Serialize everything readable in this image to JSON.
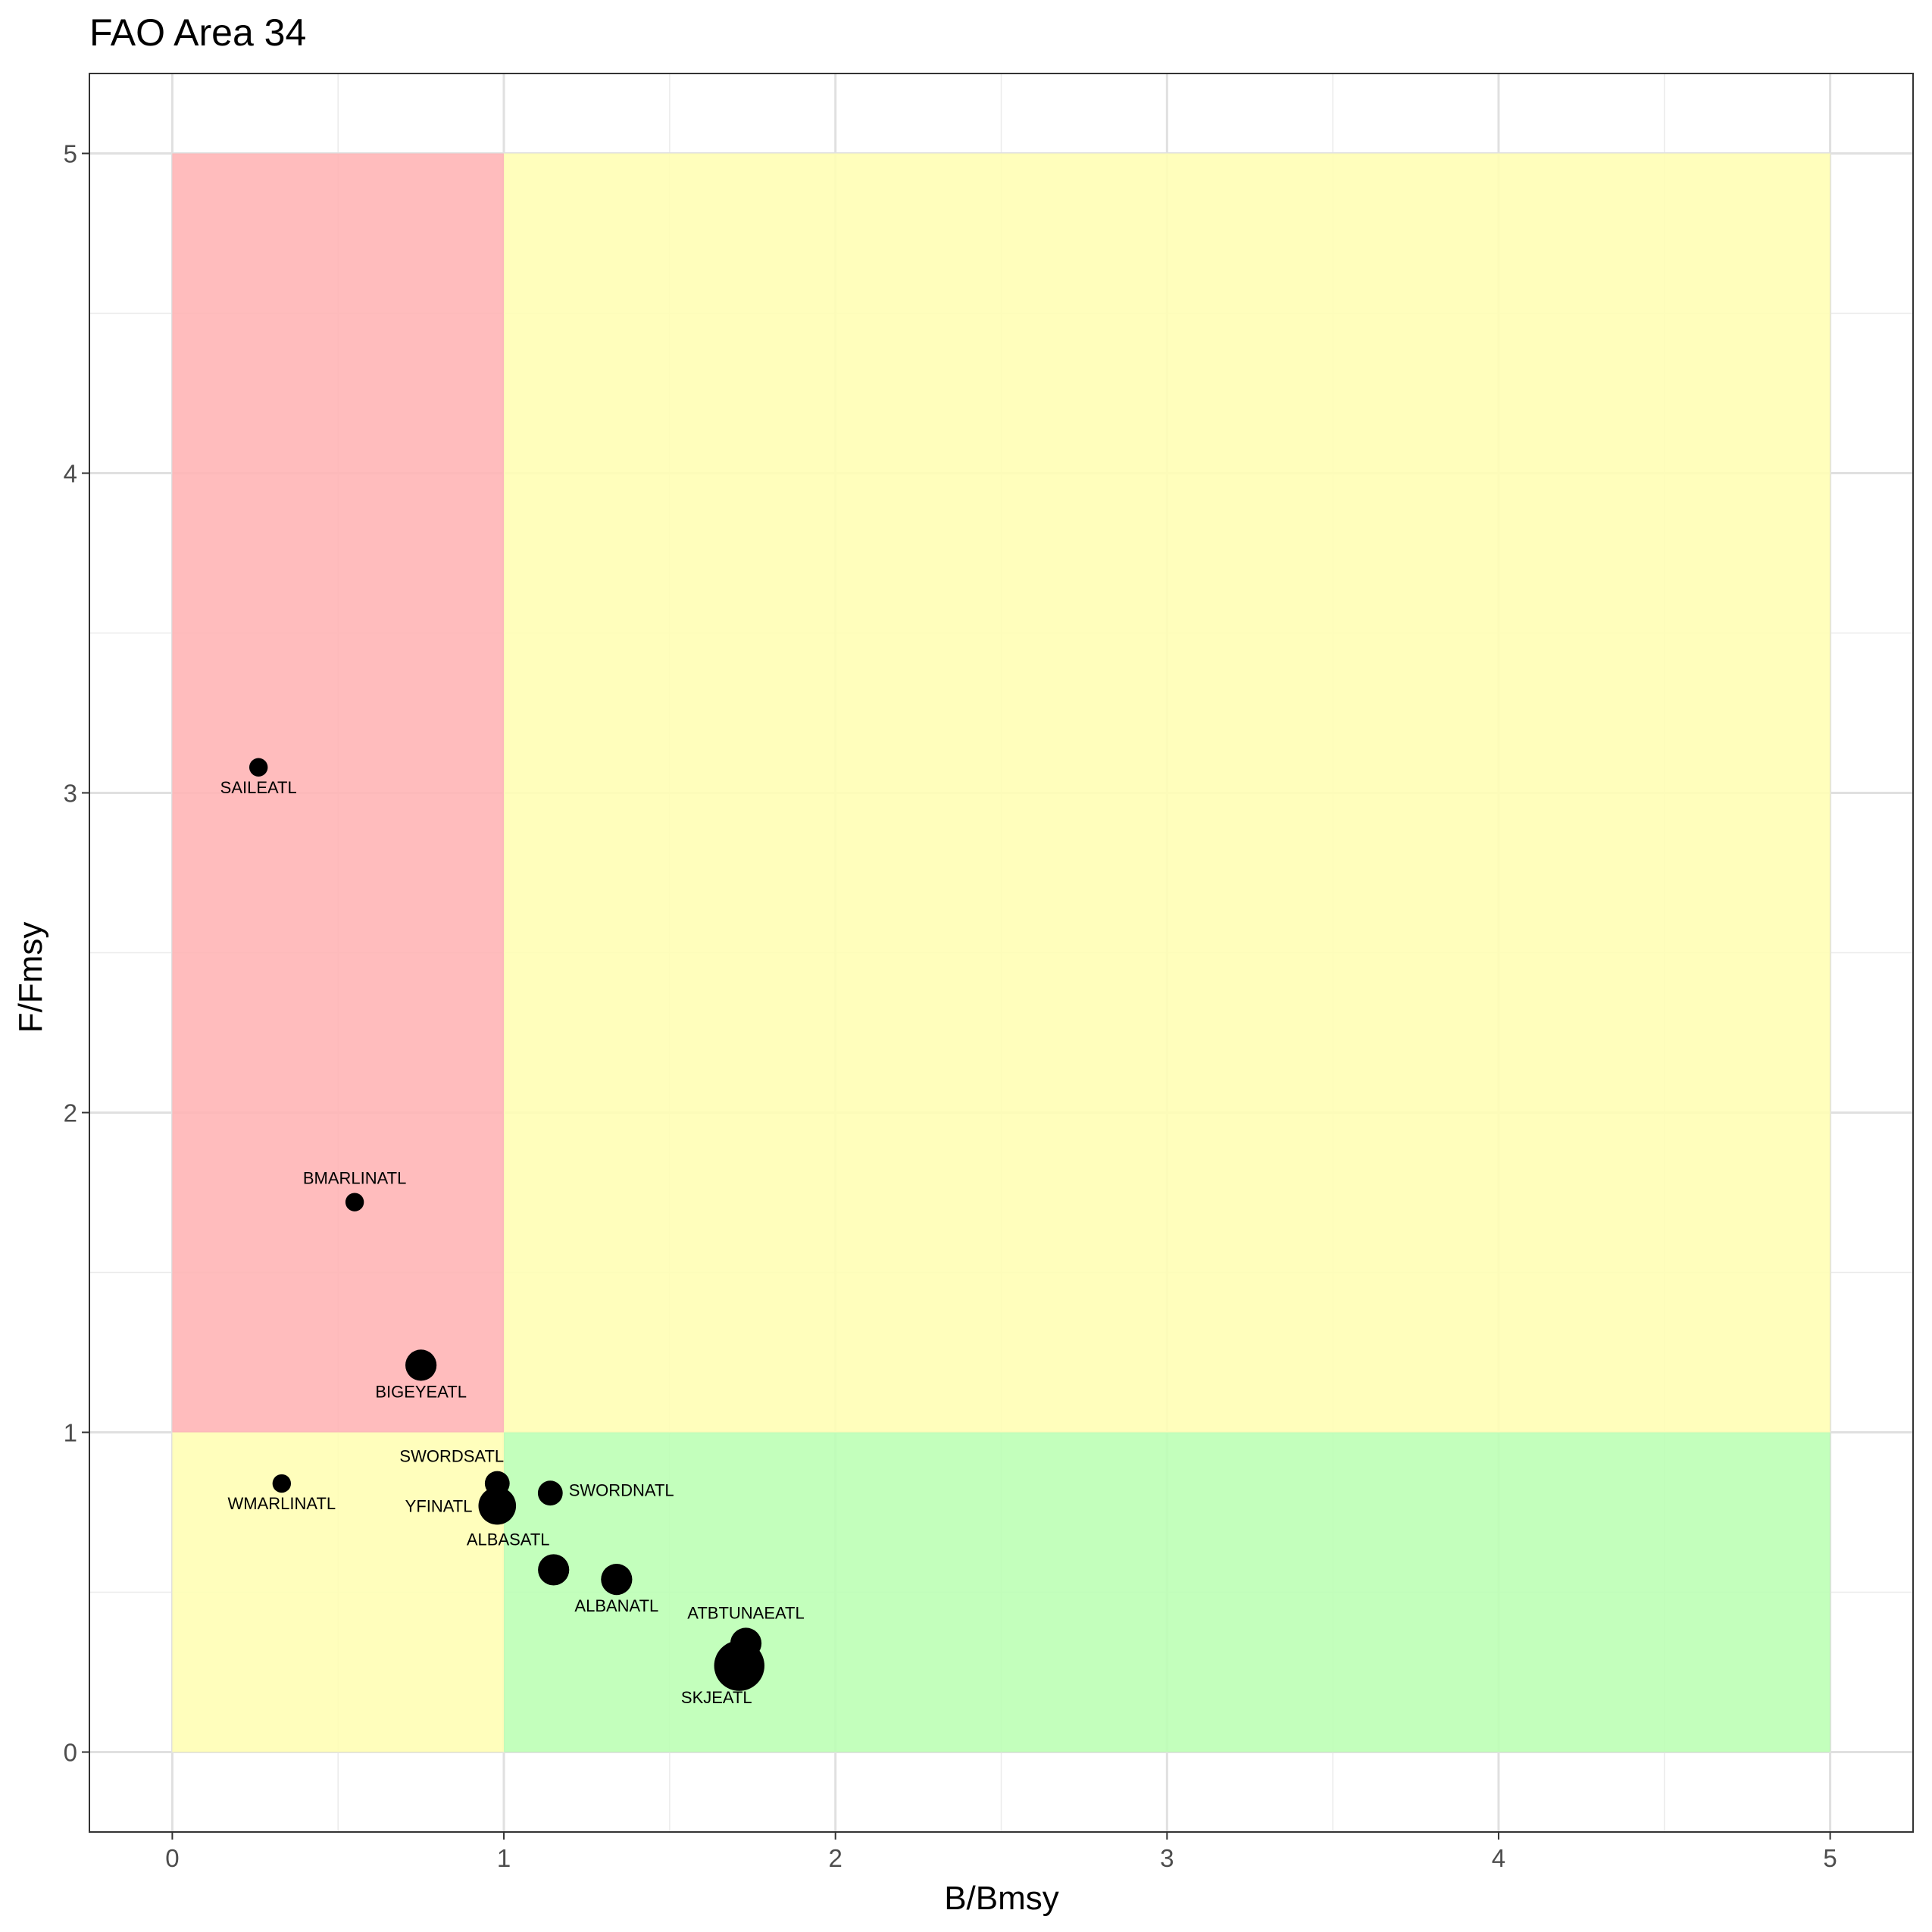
{
  "chart_data": {
    "type": "scatter",
    "title": "FAO Area 34",
    "xlabel": "B/Bmsy",
    "ylabel": "F/Fmsy",
    "xlim": [
      -0.25,
      5.25
    ],
    "ylim": [
      -0.25,
      5.25
    ],
    "x_ticks": [
      "0",
      "1",
      "2",
      "3",
      "4",
      "5"
    ],
    "y_ticks": [
      "0",
      "1",
      "2",
      "3",
      "4",
      "5"
    ],
    "grid": true,
    "legend": "none",
    "zones": [
      {
        "x": [
          0,
          1
        ],
        "y": [
          1,
          5
        ],
        "color": "#FFB3B4"
      },
      {
        "x": [
          1,
          5
        ],
        "y": [
          1,
          5
        ],
        "color": "#FFFEB3"
      },
      {
        "x": [
          0,
          1
        ],
        "y": [
          0,
          1
        ],
        "color": "#FFFEB3"
      },
      {
        "x": [
          1,
          5
        ],
        "y": [
          0,
          1
        ],
        "color": "#BBFFB3"
      }
    ],
    "points": [
      {
        "label": "SAILEATL",
        "x": 0.26,
        "y": 3.08,
        "size": 1,
        "label_pos": "below"
      },
      {
        "label": "BMARLINATL",
        "x": 0.55,
        "y": 1.72,
        "size": 1,
        "label_pos": "above"
      },
      {
        "label": "BIGEYEATL",
        "x": 0.75,
        "y": 1.21,
        "size": 3,
        "label_pos": "below"
      },
      {
        "label": "WMARLINATL",
        "x": 0.33,
        "y": 0.84,
        "size": 1,
        "label_pos": "below"
      },
      {
        "label": "SWORDSATL",
        "x": 0.98,
        "y": 0.84,
        "size": 2,
        "label_pos": "above-left"
      },
      {
        "label": "YFINATL",
        "x": 0.98,
        "y": 0.77,
        "size": 4,
        "label_pos": "left"
      },
      {
        "label": "SWORDNATL",
        "x": 1.14,
        "y": 0.81,
        "size": 2,
        "label_pos": "right"
      },
      {
        "label": "ALBASATL",
        "x": 1.15,
        "y": 0.57,
        "size": 3,
        "label_pos": "above-left"
      },
      {
        "label": "ALBANATL",
        "x": 1.34,
        "y": 0.54,
        "size": 3,
        "label_pos": "below"
      },
      {
        "label": "ATBTUNAEATL",
        "x": 1.73,
        "y": 0.34,
        "size": 3,
        "label_pos": "above"
      },
      {
        "label": "SKJEATL",
        "x": 1.71,
        "y": 0.27,
        "size": 6,
        "label_pos": "below-left"
      }
    ]
  }
}
